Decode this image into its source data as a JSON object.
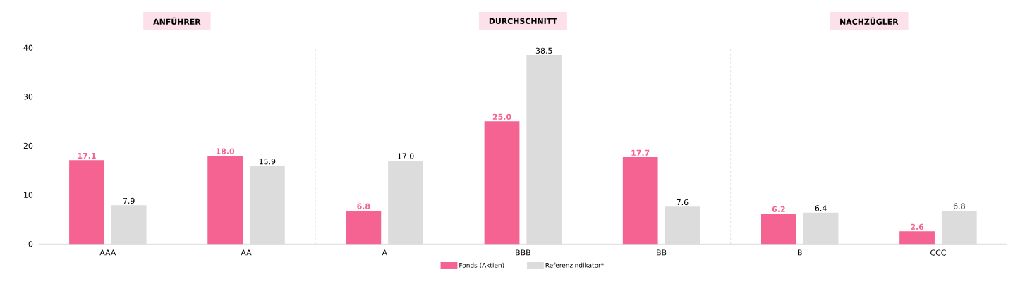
{
  "chart_data": {
    "type": "bar",
    "categories": [
      "AAA",
      "AA",
      "A",
      "BBB",
      "BB",
      "B",
      "CCC"
    ],
    "series": [
      {
        "name": "Fonds (Aktien)",
        "color": "#f46391",
        "values": [
          17.1,
          18.0,
          6.8,
          25.0,
          17.7,
          6.2,
          2.6
        ],
        "value_labels": [
          "17.1",
          "18.0",
          "6.8",
          "25.0",
          "17.7",
          "6.2",
          "2.6"
        ]
      },
      {
        "name": "Referenzindikator*",
        "color": "#dcdcdc",
        "values": [
          7.9,
          15.9,
          17.0,
          38.5,
          7.6,
          6.4,
          6.8
        ],
        "value_labels": [
          "7.9",
          "15.9",
          "17.0",
          "38.5",
          "7.6",
          "6.4",
          "6.8"
        ]
      }
    ],
    "ylim": [
      0,
      40
    ],
    "yticks": [
      0,
      10,
      20,
      30,
      40
    ],
    "annotations": [
      "ANFÜHRER",
      "DURCHSCHNITT",
      "NACHZÜGLER"
    ],
    "legend": "bottom"
  }
}
